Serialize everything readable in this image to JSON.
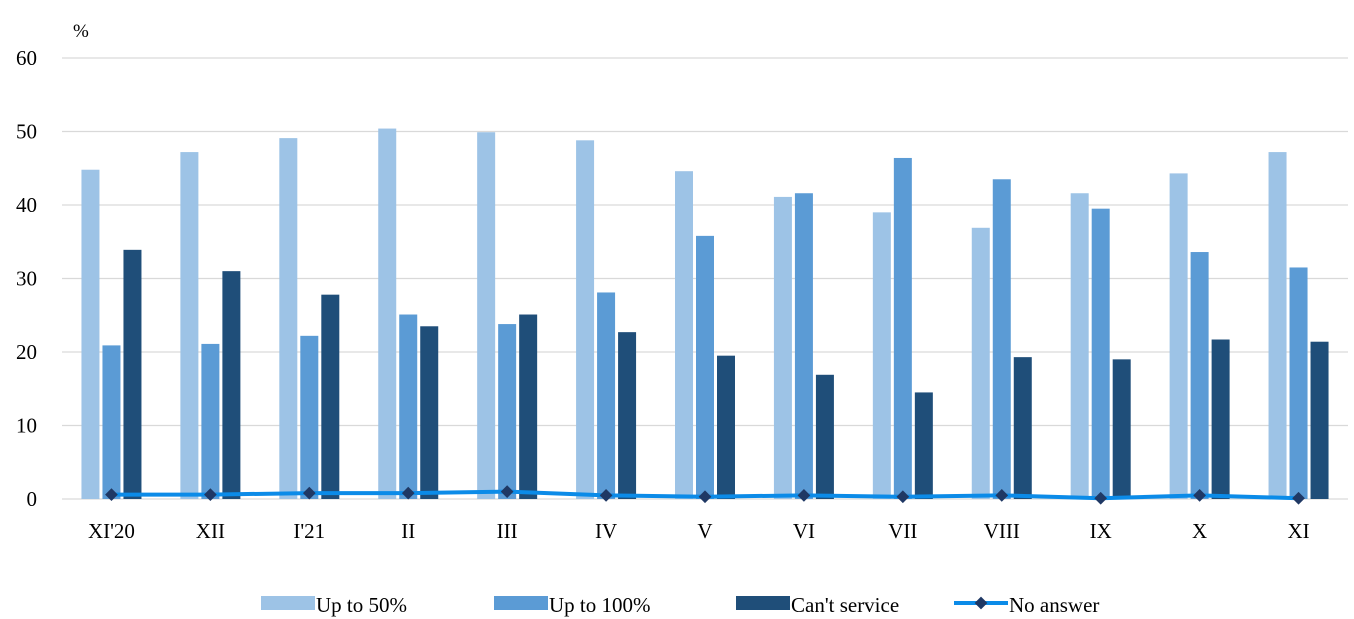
{
  "chart_data": {
    "type": "bar",
    "unit_label": "%",
    "categories": [
      "XI'20",
      "XII",
      "I'21",
      "II",
      "III",
      "IV",
      "V",
      "VI",
      "VII",
      "VIII",
      "IX",
      "X",
      "XI"
    ],
    "ylim": [
      0,
      60
    ],
    "yticks": [
      0,
      10,
      20,
      30,
      40,
      50,
      60
    ],
    "grid": true,
    "legend_position": "bottom",
    "series": [
      {
        "name": "Up to 50%",
        "type": "bar",
        "color": "#9dc3e6",
        "values": [
          44.8,
          47.2,
          49.1,
          50.4,
          49.9,
          48.8,
          44.6,
          41.1,
          39.0,
          36.9,
          41.6,
          44.3,
          47.2
        ]
      },
      {
        "name": "Up to 100%",
        "type": "bar",
        "color": "#5b9bd5",
        "values": [
          20.9,
          21.1,
          22.2,
          25.1,
          23.8,
          28.1,
          35.8,
          41.6,
          46.4,
          43.5,
          39.5,
          33.6,
          31.5
        ]
      },
      {
        "name": "Can't service",
        "type": "bar",
        "color": "#1f4e79",
        "values": [
          33.9,
          31.0,
          27.8,
          23.5,
          25.1,
          22.7,
          19.5,
          16.9,
          14.5,
          19.3,
          19.0,
          21.7,
          21.4
        ]
      },
      {
        "name": "No answer",
        "type": "line",
        "color": "#0b8be8",
        "marker_color": "#1f3864",
        "values": [
          0.6,
          0.6,
          0.8,
          0.8,
          1.0,
          0.5,
          0.3,
          0.5,
          0.3,
          0.5,
          0.1,
          0.5,
          0.1
        ]
      }
    ]
  }
}
